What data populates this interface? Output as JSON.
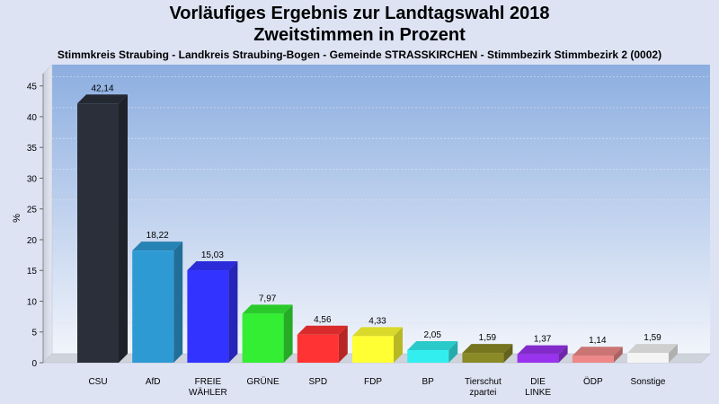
{
  "title": "Vorläufiges Ergebnis zur Landtagswahl 2018",
  "subtitle_line": "Zweitstimmen in Prozent",
  "description": "Stimmkreis Straubing - Landkreis Straubing-Bogen - Gemeinde STRASSKIRCHEN - Stimmbezirk Stimmbezirk 2 (0002)",
  "colors": {
    "CSU": "#2a2f3a",
    "AfD": "#2e9ad4",
    "FREIE WÄHLER": "#3333ff",
    "GRÜNE": "#33ee33",
    "SPD": "#ff3333",
    "FDP": "#ffff33",
    "BP": "#33eeee",
    "Tierschutzpartei": "#8a8a26",
    "DIE LINKE": "#9933ee",
    "ÖDP": "#ee8888",
    "Sonstige": "#f4f4f4"
  },
  "chart_data": {
    "type": "bar",
    "ylabel": "%",
    "xlabel": "",
    "ylim": [
      0,
      47
    ],
    "yticks": [
      0,
      5,
      10,
      15,
      20,
      25,
      30,
      35,
      40,
      45
    ],
    "categories": [
      "CSU",
      "AfD",
      "FREIE WÄHLER",
      "GRÜNE",
      "SPD",
      "FDP",
      "BP",
      "Tierschutzpartei",
      "DIE LINKE",
      "ÖDP",
      "Sonstige"
    ],
    "category_labels": [
      [
        "CSU"
      ],
      [
        "AfD"
      ],
      [
        "FREIE",
        "WÄHLER"
      ],
      [
        "GRÜNE"
      ],
      [
        "SPD"
      ],
      [
        "FDP"
      ],
      [
        "BP"
      ],
      [
        "Tierschut",
        "zpartei"
      ],
      [
        "DIE",
        "LINKE"
      ],
      [
        "ÖDP"
      ],
      [
        "Sonstige"
      ]
    ],
    "values": [
      42.14,
      18.22,
      15.03,
      7.97,
      4.56,
      4.33,
      2.05,
      1.59,
      1.37,
      1.14,
      1.59
    ],
    "value_labels": [
      "42,14",
      "18,22",
      "15,03",
      "7,97",
      "4,56",
      "4,33",
      "2,05",
      "1,59",
      "1,37",
      "1,14",
      "1,59"
    ],
    "grid": true,
    "legend": "none"
  }
}
